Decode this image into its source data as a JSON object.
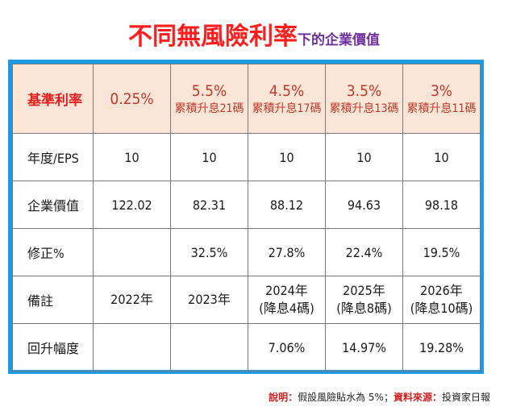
{
  "title": {
    "main": "不同無風險利率",
    "sub": "下的企業價值"
  },
  "header": {
    "label": "基準利率",
    "cols": [
      {
        "rate": "0.25%",
        "note": ""
      },
      {
        "rate": "5.5%",
        "note": "累積升息21碼"
      },
      {
        "rate": "4.5%",
        "note": "累積升息17碼"
      },
      {
        "rate": "3.5%",
        "note": "累積升息13碼"
      },
      {
        "rate": "3%",
        "note": "累積升息11碼"
      }
    ]
  },
  "rows": {
    "eps": {
      "label": "年度/EPS",
      "values": [
        "10",
        "10",
        "10",
        "10",
        "10"
      ]
    },
    "value": {
      "label": "企業價值",
      "values": [
        "122.02",
        "82.31",
        "88.12",
        "94.63",
        "98.18"
      ]
    },
    "correction": {
      "label": "修正%",
      "values": [
        "",
        "32.5%",
        "27.8%",
        "22.4%",
        "19.5%"
      ]
    },
    "note": {
      "label": "備註",
      "values": [
        {
          "line1": "2022年",
          "line2": ""
        },
        {
          "line1": "2023年",
          "line2": ""
        },
        {
          "line1": "2024年",
          "line2": "(降息4碼)"
        },
        {
          "line1": "2025年",
          "line2": "(降息8碼)"
        },
        {
          "line1": "2026年",
          "line2": "(降息10碼)"
        }
      ]
    },
    "rebound": {
      "label": "回升幅度",
      "values": [
        "",
        "",
        "7.06%",
        "14.97%",
        "19.28%"
      ]
    }
  },
  "footer": {
    "explain_label": "說明：",
    "explain_text": "假設風險貼水為 5%；",
    "source_label": "資料來源：",
    "source_text": "投資家日報"
  }
}
